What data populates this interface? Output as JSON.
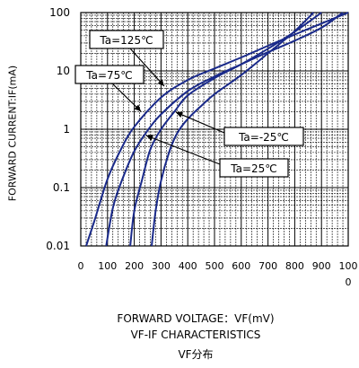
{
  "chart_data": {
    "type": "line",
    "x_scale": "linear",
    "y_scale": "log",
    "xlim": [
      0,
      1000
    ],
    "ylim": [
      0.01,
      100
    ],
    "x_ticks": [
      "0",
      "100",
      "200",
      "300",
      "400",
      "500",
      "600",
      "700",
      "800",
      "900",
      "100\n0"
    ],
    "x_tick_values": [
      0,
      100,
      200,
      300,
      400,
      500,
      600,
      700,
      800,
      900,
      1000
    ],
    "y_ticks": [
      "100",
      "10",
      "1",
      "0.1",
      "0.01"
    ],
    "y_tick_values": [
      100,
      10,
      1,
      0.1,
      0.01
    ],
    "ylabel": "FORWARD CURRENT:IF(mA)",
    "xlabel": "FORWARD VOLTAGE：VF(mV)",
    "subtitle": "VF-IF CHARACTERISTICS",
    "caption": "VF分布",
    "grid": true,
    "line_color": "#1a2a8a",
    "series": [
      {
        "name": "Ta=125℃",
        "x": [
          20,
          50,
          100,
          150,
          200,
          300,
          400,
          500,
          600,
          700,
          800,
          900,
          1000
        ],
        "y": [
          0.01,
          0.026,
          0.14,
          0.45,
          1.1,
          3.5,
          7.0,
          11,
          17,
          27,
          42,
          65,
          100
        ]
      },
      {
        "name": "Ta=75℃",
        "x": [
          95,
          120,
          150,
          200,
          250,
          300,
          400,
          500,
          600,
          700,
          800,
          900,
          980
        ],
        "y": [
          0.01,
          0.045,
          0.12,
          0.42,
          0.95,
          1.8,
          4.5,
          8.0,
          13,
          21,
          33,
          55,
          100
        ]
      },
      {
        "name": "Ta=25℃",
        "x": [
          185,
          200,
          230,
          260,
          300,
          350,
          400,
          500,
          600,
          700,
          800,
          900
        ],
        "y": [
          0.01,
          0.04,
          0.14,
          0.45,
          1.0,
          2.0,
          3.8,
          7.5,
          13,
          24,
          47,
          100
        ]
      },
      {
        "name": "Ta=-25℃",
        "x": [
          265,
          280,
          300,
          330,
          360,
          400,
          450,
          500,
          600,
          700,
          800,
          870
        ],
        "y": [
          0.01,
          0.04,
          0.13,
          0.4,
          0.85,
          1.5,
          2.5,
          4.0,
          8.5,
          20,
          48,
          100
        ]
      }
    ],
    "annotations": [
      "Ta=125℃",
      "Ta=75℃",
      "Ta=-25℃",
      "Ta=25℃"
    ]
  }
}
